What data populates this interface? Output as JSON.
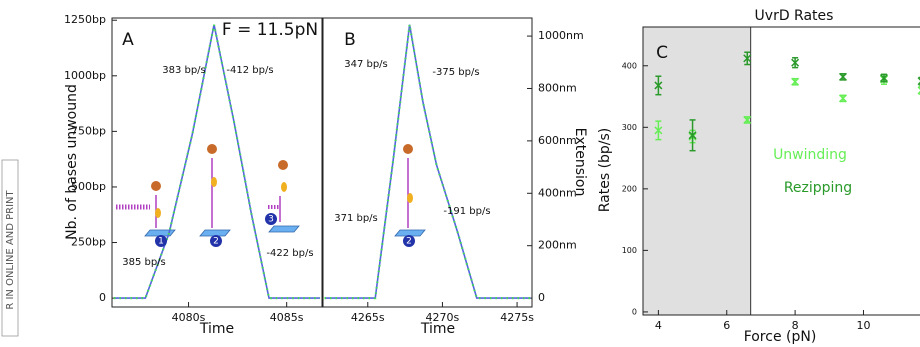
{
  "side_text": "R IN ONLINE AND PRINT",
  "chart_data": [
    {
      "type": "line",
      "panel": "A",
      "ylabel": "Nb. of bases unwound",
      "xlabel": "Time",
      "xlim": [
        4076.1,
        4086.8
      ],
      "ylim": [
        -40,
        1260
      ],
      "xticks": [
        {
          "value": 4080,
          "label": "4080s"
        },
        {
          "value": 4085,
          "label": "4085s"
        }
      ],
      "yticks": [
        0,
        {
          "value": 250,
          "label": "250bp"
        },
        {
          "value": 500,
          "label": "500bp"
        },
        {
          "value": 750,
          "label": "750bp"
        },
        {
          "value": 1000,
          "label": "1000bp"
        },
        {
          "value": 1250,
          "label": "1250bp"
        }
      ],
      "series": [
        {
          "color": "#5566dd",
          "marker_color": "#44dd55",
          "x": [
            4076.2,
            4077.8,
            4079.0,
            4080.2,
            4081.3,
            4082.3,
            4083.2,
            4084.1,
            4086.7
          ],
          "values": [
            0,
            0,
            290,
            740,
            1230,
            800,
            380,
            0,
            0
          ]
        }
      ],
      "annotations": [
        "A",
        "F = 11.5pN",
        "383 bp/s",
        "-412 bp/s",
        "385 bp/s",
        "-422 bp/s",
        "1",
        "2",
        "3"
      ]
    },
    {
      "type": "line",
      "panel": "B",
      "xlabel": "Time",
      "y2label": "Extension",
      "xlim": [
        4262,
        4276
      ],
      "ylim": [
        -40,
        1260
      ],
      "y2lim": [
        -34,
        1069
      ],
      "xticks": [
        {
          "value": 4265,
          "label": "4265s"
        },
        {
          "value": 4270,
          "label": "4270s"
        },
        {
          "value": 4275,
          "label": "4275s"
        }
      ],
      "y2ticks": [
        0,
        {
          "value": 200,
          "label": "200nm"
        },
        {
          "value": 400,
          "label": "400nm"
        },
        {
          "value": 600,
          "label": "600nm"
        },
        {
          "value": 800,
          "label": "800nm"
        },
        {
          "value": 1000,
          "label": "1000nm"
        }
      ],
      "series": [
        {
          "color": "#5566dd",
          "marker_color": "#44dd55",
          "x": [
            4262.1,
            4265.5,
            4266.7,
            4267.8,
            4268.7,
            4269.6,
            4271.0,
            4272.3,
            4275.9
          ],
          "values": [
            0,
            0,
            620,
            1230,
            880,
            600,
            300,
            0,
            0
          ]
        }
      ],
      "annotations": [
        "B",
        "347 bp/s",
        "-375 bp/s",
        "371 bp/s",
        "-191 bp/s",
        "2"
      ]
    },
    {
      "type": "errorbar",
      "panel": "C",
      "title": "UvrD Rates",
      "ylabel": "Rates (bp/s)",
      "xlabel": "Force (pN)",
      "xlim": [
        3.55,
        11.8
      ],
      "ylim": [
        -5,
        463
      ],
      "xticks": [
        4,
        6,
        8,
        10
      ],
      "yticks": [
        0,
        100,
        200,
        300,
        400
      ],
      "shade_until": 6.7,
      "x": [
        4,
        5,
        6.6,
        8,
        9.4,
        10.6,
        11.7
      ],
      "series": [
        {
          "name": "Unwinding",
          "color": "#66ee55",
          "values": [
            295,
            285,
            312,
            374,
            347,
            378,
            360
          ],
          "errors": [
            15,
            10,
            5,
            5,
            5,
            8,
            6
          ]
        },
        {
          "name": "Rezipping",
          "color": "#2a9a2a",
          "values": [
            368,
            287,
            412,
            405,
            382,
            380,
            375
          ],
          "errors": [
            15,
            25,
            10,
            8,
            5,
            6,
            6
          ]
        }
      ],
      "annotations": [
        "C"
      ]
    }
  ]
}
